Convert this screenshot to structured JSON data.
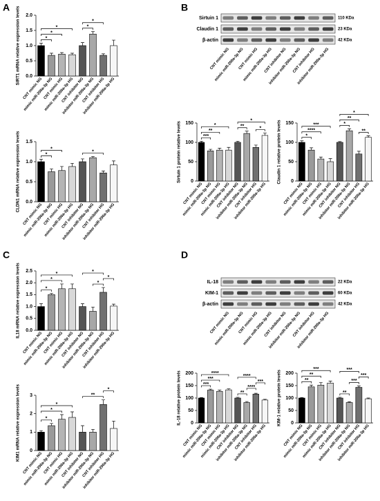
{
  "panels": {
    "a": "A",
    "b": "B",
    "c": "C",
    "d": "D"
  },
  "blots": [
    {
      "rows": [
        {
          "label": "Sirtuin 1",
          "size": "110 KDa"
        },
        {
          "label": "Claudin 1",
          "size": "23 KDa"
        },
        {
          "label": "β-actin",
          "size": "42 KDa"
        }
      ],
      "categories": [
        "CNT mimic NG",
        "mimic miR-200a-3p NG",
        "CNT mimic HG",
        "mimic miR-200a-3p HG",
        "CNT inhibitor NG",
        "inhibitor miR-200a-3p NG",
        "CNT inhibitor HG",
        "inhibitor miR-200a-3p HG"
      ]
    },
    {
      "rows": [
        {
          "label": "IL-18",
          "size": "22 KDa"
        },
        {
          "label": "KIM-1",
          "size": "60 KDa"
        },
        {
          "label": "β-actin",
          "size": "42 KDa"
        }
      ],
      "categories": [
        "CNT mimic NG",
        "mimic miR-200a-3p NG",
        "CNT mimic HG",
        "mimic miR-200a-3p HG",
        "CNT inhibitor NG",
        "inhibitor miR-200a-3p NG",
        "CNT inhibitor HG",
        "inhibitor miR-200a-3p HG"
      ]
    }
  ],
  "chart_data": [
    {
      "type": "bar",
      "y_label": "SIRT1 mRNA relative expression levels",
      "categories": [
        "CNT mimic NG",
        "mimic miR-200a-3p NG",
        "CNT mimic HG",
        "mimic miR-200a-3p HG",
        "CNT inhibitor NG",
        "inhibitor miR-200a-3p NG",
        "CNT inhibitor HG",
        "inhibitor miR-200a-3p HG"
      ],
      "values": [
        1.0,
        0.68,
        0.72,
        0.7,
        1.0,
        1.38,
        0.68,
        1.0
      ],
      "errors": [
        0.08,
        0.07,
        0.05,
        0.05,
        0.1,
        0.08,
        0.05,
        0.18
      ],
      "colors": [
        "#000000",
        "#9a9a9a",
        "#b4b4b4",
        "#d8d8d8",
        "#555555",
        "#a8a8a8",
        "#707070",
        "#f6f6f6"
      ],
      "ylim": [
        0,
        2
      ],
      "yticks": [
        {
          "value": 0,
          "label": "0.0"
        },
        {
          "value": 0.5,
          "label": "0.5"
        },
        {
          "value": 1,
          "label": "1.0"
        },
        {
          "value": 1.5,
          "label": "1.5"
        },
        {
          "value": 2,
          "label": "2.0"
        }
      ],
      "significance": [
        {
          "label": "*",
          "from": "CNT mimic NG",
          "to": "mimic miR-200a-3p NG"
        },
        {
          "label": "*",
          "from": "CNT mimic NG",
          "to": "CNT mimic HG"
        },
        {
          "label": "*",
          "from": "CNT mimic NG",
          "to": "mimic miR-200a-3p HG"
        },
        {
          "label": "*",
          "from": "CNT inhibitor NG",
          "to": "inhibitor miR-200a-3p NG"
        },
        {
          "label": "*",
          "from": "CNT inhibitor NG",
          "to": "CNT inhibitor HG"
        }
      ]
    },
    {
      "type": "bar",
      "y_label": "CLDN1 mRNA relative expression levels",
      "categories": [
        "CNT mimic NG",
        "mimic miR-200a-3p NG",
        "CNT mimic HG",
        "mimic miR-200a-3p HG",
        "CNT inhibitor NG",
        "inhibitor miR-200a-3p NG",
        "CNT inhibitor HG",
        "inhibitor miR-200a-3p HG"
      ],
      "values": [
        1.0,
        0.75,
        0.78,
        0.88,
        1.0,
        1.1,
        0.72,
        0.92
      ],
      "errors": [
        0.06,
        0.07,
        0.1,
        0.08,
        0.07,
        0.03,
        0.05,
        0.1
      ],
      "colors": [
        "#000000",
        "#9a9a9a",
        "#b4b4b4",
        "#d8d8d8",
        "#555555",
        "#a8a8a8",
        "#707070",
        "#f6f6f6"
      ],
      "ylim": [
        0,
        1.5
      ],
      "yticks": [
        {
          "value": 0,
          "label": "0.0"
        },
        {
          "value": 0.5,
          "label": "0.5"
        },
        {
          "value": 1,
          "label": "1.0"
        },
        {
          "value": 1.5,
          "label": "1.5"
        }
      ],
      "significance": [
        {
          "label": "*",
          "from": "CNT mimic NG",
          "to": "mimic miR-200a-3p NG"
        },
        {
          "label": "*",
          "from": "CNT mimic NG",
          "to": "CNT mimic HG"
        },
        {
          "label": "*",
          "from": "CNT inhibitor NG",
          "to": "CNT inhibitor HG"
        }
      ]
    },
    {
      "type": "bar",
      "y_label": "Sirtuin 1 protein relative levels",
      "categories": [
        "CNT mimic NG",
        "mimic miR-200a-3p NG",
        "CNT mimic HG",
        "mimic miR-200a-3p HG",
        "CNT inhibitor NG",
        "inhibitor miR-200a-3p NG",
        "CNT inhibitor HG",
        "inhibitor miR-200a-3p HG"
      ],
      "values": [
        100,
        78,
        80,
        80,
        100,
        123,
        87,
        118
      ],
      "errors": [
        3,
        4,
        5,
        7,
        3,
        6,
        6,
        6
      ],
      "colors": [
        "#000000",
        "#9a9a9a",
        "#b4b4b4",
        "#d8d8d8",
        "#555555",
        "#a8a8a8",
        "#707070",
        "#f6f6f6"
      ],
      "ylim": [
        0,
        150
      ],
      "yticks": [
        0,
        50,
        100,
        150
      ],
      "significance": [
        {
          "label": "***",
          "from": "CNT mimic NG",
          "to": "mimic miR-200a-3p NG"
        },
        {
          "label": "**",
          "from": "CNT mimic NG",
          "to": "CNT mimic HG"
        },
        {
          "label": "*",
          "from": "CNT mimic NG",
          "to": "mimic miR-200a-3p HG"
        },
        {
          "label": "**",
          "from": "CNT inhibitor NG",
          "to": "inhibitor miR-200a-3p NG"
        },
        {
          "label": "*",
          "from": "CNT inhibitor HG",
          "to": "inhibitor miR-200a-3p HG"
        },
        {
          "label": "*",
          "from": "CNT inhibitor NG",
          "to": "inhibitor miR-200a-3p HG"
        }
      ]
    },
    {
      "type": "bar",
      "y_label": "Claudin 1 relative protein levels",
      "categories": [
        "CNT mimic NG",
        "mimic miR-200a-3p NG",
        "CNT mimic HG",
        "mimic miR-200a-3p HG",
        "CNT inhibitor NG",
        "inhibitor miR-200a-3p NG",
        "CNT inhibitor HG",
        "inhibitor miR-200a-3p HG"
      ],
      "values": [
        100,
        80,
        57,
        50,
        100,
        130,
        70,
        113
      ],
      "errors": [
        4,
        6,
        5,
        8,
        2,
        5,
        7,
        4
      ],
      "colors": [
        "#000000",
        "#9a9a9a",
        "#b4b4b4",
        "#d8d8d8",
        "#555555",
        "#a8a8a8",
        "#707070",
        "#f6f6f6"
      ],
      "ylim": [
        0,
        150
      ],
      "yticks": [
        0,
        50,
        100,
        150
      ],
      "significance": [
        {
          "label": "*",
          "from": "CNT mimic NG",
          "to": "mimic miR-200a-3p NG"
        },
        {
          "label": "****",
          "from": "CNT mimic NG",
          "to": "CNT mimic HG"
        },
        {
          "label": "***",
          "from": "CNT mimic NG",
          "to": "mimic miR-200a-3p HG"
        },
        {
          "label": "*",
          "from": "CNT inhibitor NG",
          "to": "inhibitor miR-200a-3p NG"
        },
        {
          "label": "**",
          "from": "CNT inhibitor HG",
          "to": "inhibitor miR-200a-3p HG"
        },
        {
          "label": "**",
          "from": "CNT inhibitor NG",
          "to": "CNT inhibitor HG"
        },
        {
          "label": "*",
          "from": "CNT inhibitor NG",
          "to": "inhibitor miR-200a-3p HG"
        }
      ]
    },
    {
      "type": "bar",
      "y_label": "IL18 mRNA relative expression levels",
      "categories": [
        "CNT mimic NG",
        "mimic miR-200a-3p NG",
        "CNT mimic HG",
        "mimic miR-200a-3p HG",
        "CNT inhibitor NG",
        "inhibitor miR-200a-3p NG",
        "CNT inhibitor HG",
        "inhibitor miR-200a-3p HG"
      ],
      "values": [
        1.0,
        1.5,
        1.75,
        1.75,
        1.0,
        0.8,
        1.6,
        1.02
      ],
      "errors": [
        0.12,
        0.05,
        0.2,
        0.2,
        0.12,
        0.18,
        0.2,
        0.08
      ],
      "colors": [
        "#000000",
        "#9a9a9a",
        "#b4b4b4",
        "#d8d8d8",
        "#555555",
        "#a8a8a8",
        "#707070",
        "#f6f6f6"
      ],
      "ylim": [
        0,
        2.5
      ],
      "yticks": [
        {
          "value": 0,
          "label": "0.0"
        },
        {
          "value": 0.5,
          "label": "0.5"
        },
        {
          "value": 1,
          "label": "1.0"
        },
        {
          "value": 1.5,
          "label": "1.5"
        },
        {
          "value": 2,
          "label": "2.0"
        },
        {
          "value": 2.5,
          "label": "2.5"
        }
      ],
      "significance": [
        {
          "label": "*",
          "from": "CNT mimic NG",
          "to": "mimic miR-200a-3p NG"
        },
        {
          "label": "*",
          "from": "CNT mimic NG",
          "to": "CNT mimic HG"
        },
        {
          "label": "*",
          "from": "CNT mimic NG",
          "to": "mimic miR-200a-3p HG"
        },
        {
          "label": "*",
          "from": "inhibitor miR-200a-3p NG",
          "to": "CNT inhibitor HG"
        },
        {
          "label": "*",
          "from": "CNT inhibitor HG",
          "to": "inhibitor miR-200a-3p HG"
        },
        {
          "label": "*",
          "from": "CNT inhibitor NG",
          "to": "CNT inhibitor HG"
        }
      ]
    },
    {
      "type": "bar",
      "y_label": "KIM1 mRNA relative expression levels",
      "categories": [
        "CNT mimic NG",
        "mimic miR-200a-3p NG",
        "CNT mimic HG",
        "mimic miR-200a-3p HG",
        "CNT inhibitor NG",
        "inhibitor miR-200a-3p NG",
        "CNT inhibitor HG",
        "inhibitor miR-200a-3p HG"
      ],
      "values": [
        1.0,
        1.35,
        1.7,
        1.8,
        1.0,
        1.0,
        2.5,
        1.2
      ],
      "errors": [
        0.08,
        0.12,
        0.25,
        0.3,
        0.35,
        0.15,
        0.25,
        0.4
      ],
      "colors": [
        "#000000",
        "#9a9a9a",
        "#b4b4b4",
        "#d8d8d8",
        "#555555",
        "#a8a8a8",
        "#707070",
        "#f6f6f6"
      ],
      "ylim": [
        0,
        3
      ],
      "yticks": [
        0,
        1,
        2,
        3
      ],
      "significance": [
        {
          "label": "*",
          "from": "CNT mimic NG",
          "to": "mimic miR-200a-3p NG"
        },
        {
          "label": "*",
          "from": "CNT mimic NG",
          "to": "CNT mimic HG"
        },
        {
          "label": "*",
          "from": "CNT mimic NG",
          "to": "mimic miR-200a-3p HG"
        },
        {
          "label": "**",
          "from": "CNT inhibitor NG",
          "to": "CNT inhibitor HG"
        },
        {
          "label": "*",
          "from": "CNT inhibitor HG",
          "to": "inhibitor miR-200a-3p HG"
        }
      ]
    },
    {
      "type": "bar",
      "y_label": "IL-18 relative protein levels",
      "categories": [
        "CNT mimic NG",
        "mimic miR-200a-3p NG",
        "CNT mimic HG",
        "mimic miR-200a-3p HG",
        "CNT inhibitor NG",
        "inhibitor miR-200a-3p NG",
        "CNT inhibitor HG",
        "inhibitor miR-200a-3p HG"
      ],
      "values": [
        100,
        132,
        127,
        133,
        100,
        82,
        116,
        92
      ],
      "errors": [
        2,
        4,
        5,
        4,
        3,
        4,
        3,
        3
      ],
      "colors": [
        "#000000",
        "#9a9a9a",
        "#b4b4b4",
        "#d8d8d8",
        "#555555",
        "#a8a8a8",
        "#707070",
        "#f6f6f6"
      ],
      "ylim": [
        0,
        200
      ],
      "yticks": [
        0,
        50,
        100,
        150,
        200
      ],
      "significance": [
        {
          "label": "***",
          "from": "CNT mimic NG",
          "to": "mimic miR-200a-3p NG"
        },
        {
          "label": "***",
          "from": "CNT mimic NG",
          "to": "CNT mimic HG"
        },
        {
          "label": "****",
          "from": "CNT mimic NG",
          "to": "mimic miR-200a-3p HG"
        },
        {
          "label": "**",
          "from": "CNT inhibitor NG",
          "to": "inhibitor miR-200a-3p NG"
        },
        {
          "label": "****",
          "from": "inhibitor miR-200a-3p NG",
          "to": "CNT inhibitor HG"
        },
        {
          "label": "***",
          "from": "CNT inhibitor HG",
          "to": "inhibitor miR-200a-3p HG"
        },
        {
          "label": "****",
          "from": "CNT inhibitor NG",
          "to": "CNT inhibitor HG"
        }
      ]
    },
    {
      "type": "bar",
      "y_label": "KIM-1 relative protein levels",
      "categories": [
        "CNT mimic NG",
        "mimic miR-200a-3p NG",
        "CNT mimic HG",
        "mimic miR-200a-3p HG",
        "CNT inhibitor NG",
        "inhibitor miR-200a-3p NG",
        "CNT inhibitor HG",
        "inhibitor miR-200a-3p HG"
      ],
      "values": [
        100,
        145,
        152,
        160,
        100,
        82,
        143,
        97
      ],
      "errors": [
        2,
        7,
        10,
        8,
        3,
        3,
        6,
        3
      ],
      "colors": [
        "#000000",
        "#9a9a9a",
        "#b4b4b4",
        "#d8d8d8",
        "#555555",
        "#a8a8a8",
        "#707070",
        "#f6f6f6"
      ],
      "ylim": [
        0,
        200
      ],
      "yticks": [
        0,
        50,
        100,
        150,
        200
      ],
      "significance": [
        {
          "label": "**",
          "from": "CNT mimic NG",
          "to": "mimic miR-200a-3p NG"
        },
        {
          "label": "**",
          "from": "CNT mimic NG",
          "to": "CNT mimic HG"
        },
        {
          "label": "***",
          "from": "CNT mimic NG",
          "to": "mimic miR-200a-3p HG"
        },
        {
          "label": "**",
          "from": "CNT inhibitor NG",
          "to": "inhibitor miR-200a-3p NG"
        },
        {
          "label": "***",
          "from": "inhibitor miR-200a-3p NG",
          "to": "CNT inhibitor HG"
        },
        {
          "label": "***",
          "from": "CNT inhibitor HG",
          "to": "inhibitor miR-200a-3p HG"
        },
        {
          "label": "***",
          "from": "CNT inhibitor NG",
          "to": "CNT inhibitor HG"
        }
      ]
    }
  ]
}
